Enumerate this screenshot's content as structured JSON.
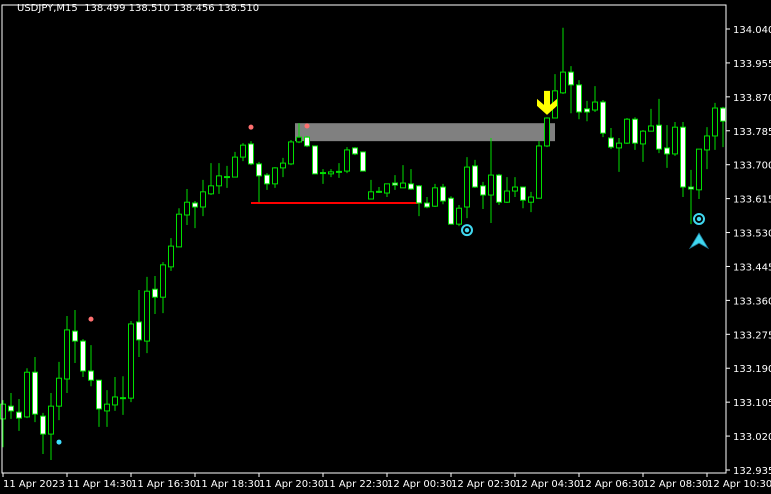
{
  "header": {
    "symbol": "USDJPY,M15",
    "ohlc": "138.499 138.510 138.456 138.510"
  },
  "colors": {
    "background": "#000000",
    "frame": "#ffffff",
    "candle_outline": "#00e000",
    "bull_body": "#000000",
    "bear_body": "#ffffff",
    "zone": "#808080",
    "support_line": "#ff0000",
    "dot_red": "#ff7070",
    "dot_cyan": "#40e0ff",
    "target": "#40d8f0",
    "down_arrow": "#ffff00"
  },
  "chart_data": {
    "type": "candlestick",
    "title": "USDJPY,M15",
    "ylim": [
      132.935,
      134.04
    ],
    "grid": false,
    "y_ticks": [
      "134.040",
      "133.955",
      "133.870",
      "133.785",
      "133.700",
      "133.615",
      "133.530",
      "133.445",
      "133.360",
      "133.275",
      "133.190",
      "133.105",
      "133.020",
      "132.935"
    ],
    "x_ticks": [
      {
        "index": 0,
        "label": "11 Apr 2023"
      },
      {
        "index": 8,
        "label": "11 Apr 14:30"
      },
      {
        "index": 16,
        "label": "11 Apr 16:30"
      },
      {
        "index": 24,
        "label": "11 Apr 18:30"
      },
      {
        "index": 32,
        "label": "11 Apr 20:30"
      },
      {
        "index": 40,
        "label": "11 Apr 22:30"
      },
      {
        "index": 48,
        "label": "12 Apr 00:30"
      },
      {
        "index": 56,
        "label": "12 Apr 02:30"
      },
      {
        "index": 64,
        "label": "12 Apr 04:30"
      },
      {
        "index": 72,
        "label": "12 Apr 06:30"
      },
      {
        "index": 80,
        "label": "12 Apr 08:30"
      },
      {
        "index": 88,
        "label": "12 Apr 10:30"
      }
    ],
    "candles_ohlc": [
      [
        133.063,
        133.11,
        132.992,
        133.1
      ],
      [
        133.095,
        133.128,
        133.063,
        133.083
      ],
      [
        133.08,
        133.113,
        133.033,
        133.065
      ],
      [
        133.068,
        133.19,
        133.065,
        133.18
      ],
      [
        133.18,
        133.218,
        133.055,
        133.075
      ],
      [
        133.07,
        133.078,
        132.975,
        133.025
      ],
      [
        133.025,
        133.128,
        132.96,
        133.095
      ],
      [
        133.095,
        133.206,
        133.06,
        133.165
      ],
      [
        133.163,
        133.321,
        133.128,
        133.286
      ],
      [
        133.283,
        133.336,
        133.203,
        133.258
      ],
      [
        133.258,
        133.263,
        133.168,
        133.183
      ],
      [
        133.183,
        133.248,
        133.145,
        133.16
      ],
      [
        133.16,
        133.16,
        133.043,
        133.088
      ],
      [
        133.083,
        133.135,
        133.043,
        133.1
      ],
      [
        133.098,
        133.168,
        133.083,
        133.118
      ],
      [
        133.115,
        133.17,
        133.073,
        133.115
      ],
      [
        133.115,
        133.308,
        133.105,
        133.301
      ],
      [
        133.306,
        133.386,
        133.218,
        133.261
      ],
      [
        133.258,
        133.419,
        133.228,
        133.383
      ],
      [
        133.388,
        133.421,
        133.326,
        133.368
      ],
      [
        133.368,
        133.456,
        133.328,
        133.449
      ],
      [
        133.444,
        133.516,
        133.434,
        133.496
      ],
      [
        133.494,
        133.591,
        133.494,
        133.576
      ],
      [
        133.574,
        133.639,
        133.549,
        133.606
      ],
      [
        133.604,
        133.609,
        133.541,
        133.594
      ],
      [
        133.594,
        133.662,
        133.571,
        133.632
      ],
      [
        133.627,
        133.704,
        133.624,
        133.647
      ],
      [
        133.647,
        133.704,
        133.627,
        133.672
      ],
      [
        133.669,
        133.697,
        133.642,
        133.669
      ],
      [
        133.669,
        133.732,
        133.669,
        133.719
      ],
      [
        133.719,
        133.754,
        133.709,
        133.749
      ],
      [
        133.752,
        133.759,
        133.699,
        133.702
      ],
      [
        133.702,
        133.707,
        133.606,
        133.672
      ],
      [
        133.674,
        133.679,
        133.637,
        133.652
      ],
      [
        133.652,
        133.694,
        133.642,
        133.692
      ],
      [
        133.692,
        133.717,
        133.669,
        133.704
      ],
      [
        133.702,
        133.762,
        133.699,
        133.757
      ],
      [
        133.757,
        133.804,
        133.754,
        133.769
      ],
      [
        133.769,
        133.772,
        133.744,
        133.747
      ],
      [
        133.747,
        133.747,
        133.677,
        133.677
      ],
      [
        133.679,
        133.689,
        133.652,
        133.679
      ],
      [
        133.677,
        133.689,
        133.669,
        133.682
      ],
      [
        133.682,
        133.704,
        133.667,
        133.682
      ],
      [
        133.684,
        133.744,
        133.679,
        133.737
      ],
      [
        133.742,
        133.744,
        133.724,
        133.727
      ],
      [
        133.732,
        133.732,
        133.684,
        133.684
      ],
      [
        133.614,
        133.662,
        133.614,
        133.632
      ],
      [
        133.632,
        133.644,
        133.629,
        133.632
      ],
      [
        133.629,
        133.652,
        133.619,
        133.652
      ],
      [
        133.654,
        133.674,
        133.637,
        133.649
      ],
      [
        133.642,
        133.699,
        133.642,
        133.654
      ],
      [
        133.652,
        133.689,
        133.637,
        133.639
      ],
      [
        133.647,
        133.649,
        133.571,
        133.604
      ],
      [
        133.604,
        133.619,
        133.591,
        133.594
      ],
      [
        133.596,
        133.652,
        133.594,
        133.642
      ],
      [
        133.644,
        133.652,
        133.601,
        133.609
      ],
      [
        133.616,
        133.621,
        133.551,
        133.551
      ],
      [
        133.551,
        133.599,
        133.546,
        133.591
      ],
      [
        133.594,
        133.719,
        133.566,
        133.694
      ],
      [
        133.697,
        133.712,
        133.642,
        133.644
      ],
      [
        133.647,
        133.657,
        133.589,
        133.624
      ],
      [
        133.624,
        133.767,
        133.554,
        133.674
      ],
      [
        133.674,
        133.677,
        133.599,
        133.606
      ],
      [
        133.606,
        133.669,
        133.604,
        133.634
      ],
      [
        133.634,
        133.669,
        133.619,
        133.644
      ],
      [
        133.644,
        133.644,
        133.591,
        133.611
      ],
      [
        133.606,
        133.632,
        133.581,
        133.619
      ],
      [
        133.616,
        133.759,
        133.616,
        133.747
      ],
      [
        133.747,
        133.819,
        133.744,
        133.817
      ],
      [
        133.817,
        133.927,
        133.817,
        133.885
      ],
      [
        133.88,
        134.043,
        133.877,
        133.932
      ],
      [
        133.932,
        133.947,
        133.829,
        133.9
      ],
      [
        133.9,
        133.912,
        133.814,
        133.832
      ],
      [
        133.84,
        133.86,
        133.809,
        133.832
      ],
      [
        133.837,
        133.897,
        133.832,
        133.857
      ],
      [
        133.857,
        133.862,
        133.769,
        133.779
      ],
      [
        133.767,
        133.792,
        133.739,
        133.744
      ],
      [
        133.742,
        133.767,
        133.682,
        133.754
      ],
      [
        133.754,
        133.817,
        133.752,
        133.814
      ],
      [
        133.814,
        133.819,
        133.737,
        133.754
      ],
      [
        133.752,
        133.787,
        133.707,
        133.784
      ],
      [
        133.784,
        133.84,
        133.784,
        133.797
      ],
      [
        133.799,
        133.865,
        133.729,
        133.739
      ],
      [
        133.742,
        133.799,
        133.692,
        133.727
      ],
      [
        133.727,
        133.807,
        133.722,
        133.794
      ],
      [
        133.794,
        133.807,
        133.619,
        133.644
      ],
      [
        133.644,
        133.687,
        133.551,
        133.639
      ],
      [
        133.637,
        133.739,
        133.614,
        133.739
      ],
      [
        133.737,
        133.794,
        133.689,
        133.772
      ],
      [
        133.772,
        133.855,
        133.737,
        133.842
      ],
      [
        133.842,
        133.845,
        133.744,
        133.809
      ]
    ],
    "zone": {
      "from_index": 37,
      "to_index": 69,
      "top": 133.804,
      "bottom": 133.759
    },
    "support_line": {
      "from_index": 31,
      "to_index": 52,
      "price": 133.604
    },
    "markers": [
      {
        "type": "dot",
        "color": "red",
        "index": 11,
        "price": 133.313
      },
      {
        "type": "dot",
        "color": "red",
        "index": 31,
        "price": 133.794
      },
      {
        "type": "dot",
        "color": "red",
        "index": 38,
        "price": 133.797
      },
      {
        "type": "dot",
        "color": "cyan",
        "index": 7,
        "price": 133.005
      },
      {
        "type": "target",
        "index": 58,
        "price": 133.536
      },
      {
        "type": "target",
        "index": 87,
        "price": 133.564
      },
      {
        "type": "up-arrow",
        "index": 87,
        "price": 133.511
      },
      {
        "type": "down-arrow",
        "index": 68,
        "price": 133.85
      }
    ]
  }
}
